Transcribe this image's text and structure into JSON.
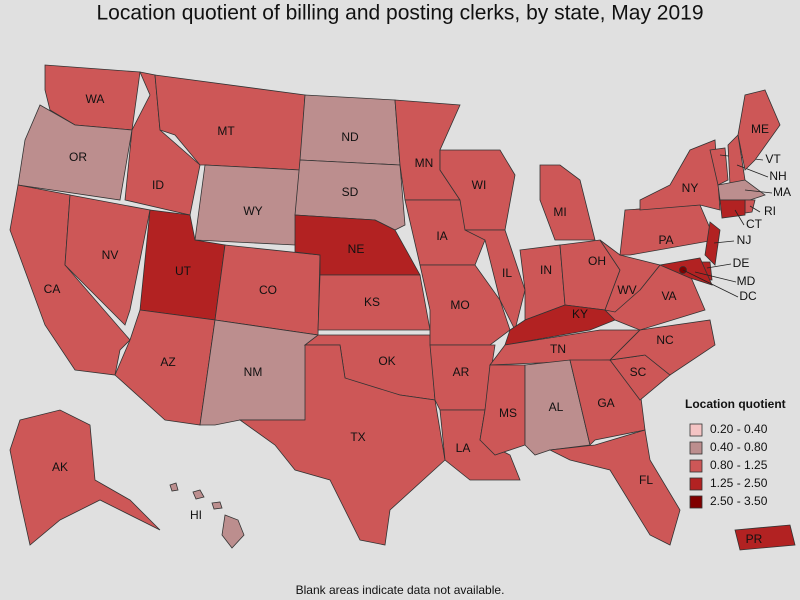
{
  "title": "Location quotient of billing and posting clerks, by state, May 2019",
  "footnote": "Blank areas indicate data not available.",
  "legend": {
    "title": "Location quotient",
    "items": [
      {
        "label": "0.20 - 0.40",
        "color": "#f4c4c4"
      },
      {
        "label": "0.40 - 0.80",
        "color": "#bc8e8e"
      },
      {
        "label": "0.80 - 1.25",
        "color": "#cd5757"
      },
      {
        "label": "1.25 - 2.50",
        "color": "#b22222"
      },
      {
        "label": "2.50 - 3.50",
        "color": "#800000"
      }
    ]
  },
  "states": [
    {
      "label": "WA",
      "class": 2
    },
    {
      "label": "OR",
      "class": 1
    },
    {
      "label": "CA",
      "class": 2
    },
    {
      "label": "NV",
      "class": 2
    },
    {
      "label": "ID",
      "class": 2
    },
    {
      "label": "MT",
      "class": 2
    },
    {
      "label": "WY",
      "class": 1
    },
    {
      "label": "UT",
      "class": 3
    },
    {
      "label": "AZ",
      "class": 2
    },
    {
      "label": "CO",
      "class": 2
    },
    {
      "label": "NM",
      "class": 1
    },
    {
      "label": "ND",
      "class": 1
    },
    {
      "label": "SD",
      "class": 1
    },
    {
      "label": "NE",
      "class": 3
    },
    {
      "label": "KS",
      "class": 2
    },
    {
      "label": "OK",
      "class": 2
    },
    {
      "label": "TX",
      "class": 2
    },
    {
      "label": "MN",
      "class": 2
    },
    {
      "label": "IA",
      "class": 2
    },
    {
      "label": "MO",
      "class": 2
    },
    {
      "label": "AR",
      "class": 2
    },
    {
      "label": "LA",
      "class": 2
    },
    {
      "label": "WI",
      "class": 2
    },
    {
      "label": "IL",
      "class": 2
    },
    {
      "label": "MI",
      "class": 2
    },
    {
      "label": "IN",
      "class": 2
    },
    {
      "label": "OH",
      "class": 2
    },
    {
      "label": "KY",
      "class": 3
    },
    {
      "label": "TN",
      "class": 2
    },
    {
      "label": "MS",
      "class": 2
    },
    {
      "label": "AL",
      "class": 1
    },
    {
      "label": "GA",
      "class": 2
    },
    {
      "label": "FL",
      "class": 2
    },
    {
      "label": "SC",
      "class": 2
    },
    {
      "label": "NC",
      "class": 2
    },
    {
      "label": "VA",
      "class": 2
    },
    {
      "label": "WV",
      "class": 2
    },
    {
      "label": "PA",
      "class": 2
    },
    {
      "label": "NY",
      "class": 2
    },
    {
      "label": "VT",
      "class": 2
    },
    {
      "label": "NH",
      "class": 2
    },
    {
      "label": "ME",
      "class": 2
    },
    {
      "label": "MA",
      "class": 1
    },
    {
      "label": "RI",
      "class": 2
    },
    {
      "label": "CT",
      "class": 3
    },
    {
      "label": "NJ",
      "class": 3
    },
    {
      "label": "DE",
      "class": 3
    },
    {
      "label": "MD",
      "class": 3
    },
    {
      "label": "DC",
      "class": 4
    },
    {
      "label": "AK",
      "class": 2
    },
    {
      "label": "HI",
      "class": 1
    },
    {
      "label": "PR",
      "class": 3
    }
  ]
}
